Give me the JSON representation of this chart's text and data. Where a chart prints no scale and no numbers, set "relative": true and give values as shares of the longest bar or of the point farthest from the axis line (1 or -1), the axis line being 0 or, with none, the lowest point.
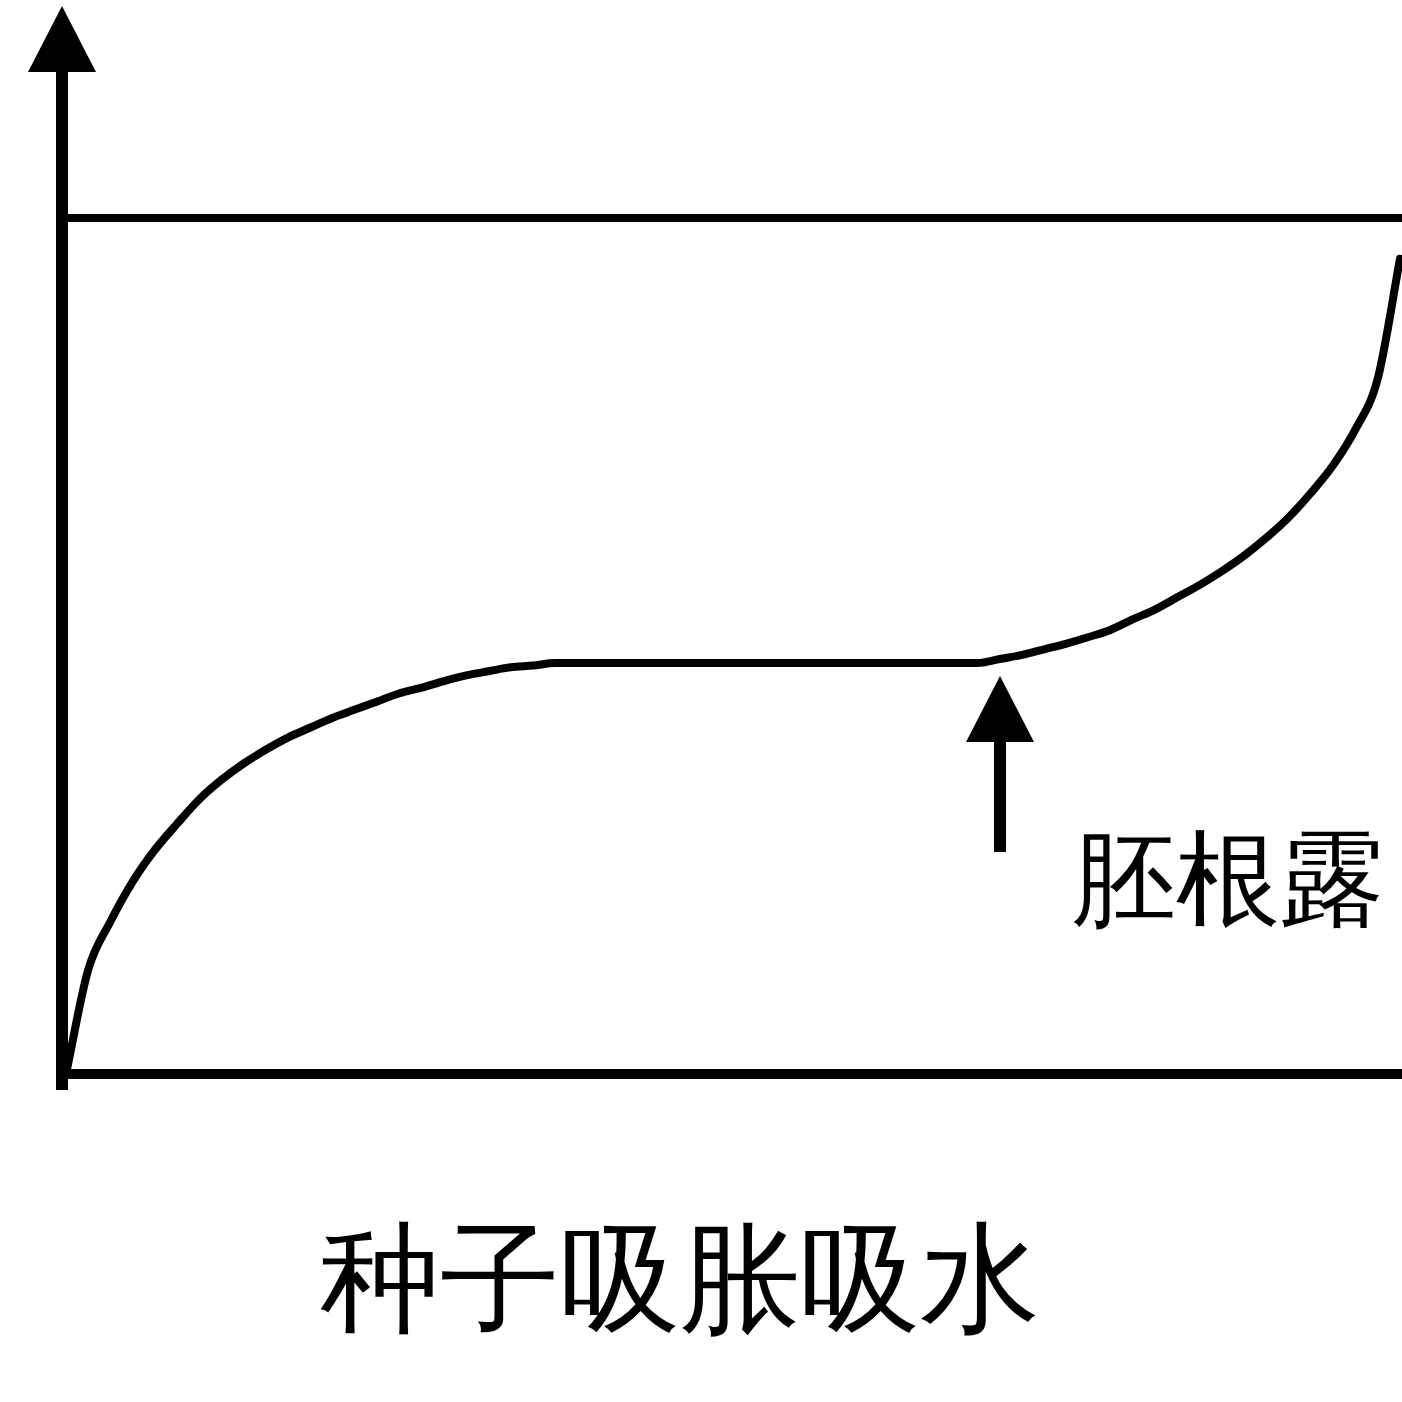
{
  "chart_data": {
    "type": "line",
    "xlabel": "种子吸胀吸水",
    "annotations": [
      "胚根露"
    ],
    "relative": true,
    "color": "#000000",
    "categories": [
      null,
      null,
      null,
      null,
      null,
      null,
      null,
      null,
      null,
      null,
      null,
      null,
      null,
      null,
      null,
      null,
      null,
      null,
      null,
      null,
      null,
      null,
      null,
      null,
      null,
      null,
      null,
      null,
      null,
      null,
      null,
      null,
      null,
      null,
      null,
      null,
      null,
      null,
      null,
      null,
      null,
      null,
      null,
      null,
      null,
      null,
      null,
      null,
      null,
      null,
      null,
      null,
      null,
      null,
      null,
      null,
      null,
      null,
      null,
      null,
      null
    ],
    "values": [
      0,
      0.128,
      0.187,
      0.236,
      0.275,
      0.307,
      0.337,
      0.361,
      0.381,
      0.398,
      0.413,
      0.425,
      0.437,
      0.447,
      0.457,
      0.467,
      0.474,
      0.482,
      0.489,
      0.494,
      0.499,
      0.501,
      0.504,
      0.504,
      0.504,
      0.504,
      0.504,
      0.504,
      0.504,
      0.504,
      0.504,
      0.504,
      0.504,
      0.504,
      0.504,
      0.504,
      0.504,
      0.504,
      0.504,
      0.504,
      0.504,
      0.504,
      0.509,
      0.514,
      0.521,
      0.528,
      0.536,
      0.545,
      0.558,
      0.57,
      0.585,
      0.6,
      0.617,
      0.636,
      0.658,
      0.683,
      0.713,
      0.747,
      0.791,
      0.853,
      1
    ],
    "ref_lines": [
      {
        "axis": "y",
        "value": 1.05
      }
    ]
  }
}
